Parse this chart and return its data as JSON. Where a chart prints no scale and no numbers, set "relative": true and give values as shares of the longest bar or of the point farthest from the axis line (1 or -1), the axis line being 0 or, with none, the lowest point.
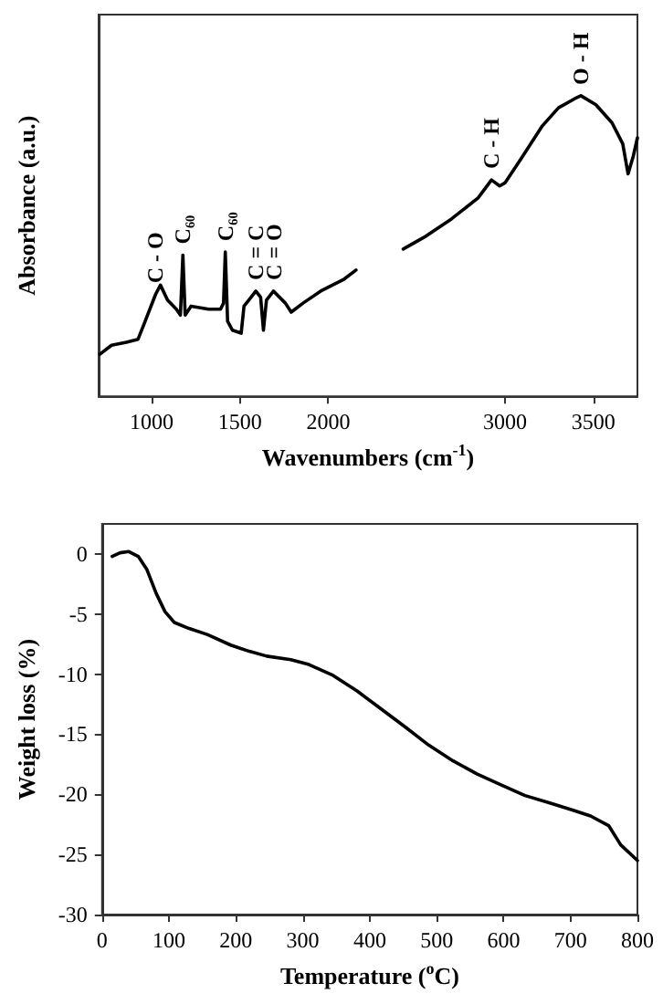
{
  "chart_data": [
    {
      "type": "line",
      "relative": true,
      "xlabel": "Wavenumbers (cm$^{-1}$)",
      "ylabel": "Absorbance (a.u.)",
      "xlim": [
        700,
        3750
      ],
      "xticks": [
        1000,
        1500,
        2000,
        3000,
        3500
      ],
      "tick_labels": "x",
      "grid": false,
      "marker": "none",
      "line_style": "solid",
      "x": [
        707,
        773,
        857,
        923,
        957,
        1023,
        1050,
        1090,
        1140,
        1163,
        1177,
        1190,
        1223,
        1323,
        1390,
        1407,
        1417,
        1430,
        1457,
        1507,
        1523,
        1550,
        1590,
        1617,
        1633,
        1650,
        1690,
        1757,
        1790,
        1857,
        1957,
        2090,
        2157,
        2200,
        2424,
        2545,
        2697,
        2848,
        2924,
        2970,
        3000,
        3091,
        3212,
        3303,
        3394,
        3430,
        3515,
        3606,
        3667,
        3697,
        3727,
        3750
      ],
      "series": [
        {
          "color": "#000000",
          "values": [
            0.14,
            0.17,
            0.18,
            0.19,
            0.24,
            0.34,
            0.37,
            0.32,
            0.29,
            0.27,
            0.47,
            0.27,
            0.3,
            0.29,
            0.29,
            0.31,
            0.48,
            0.25,
            0.22,
            0.21,
            0.3,
            0.32,
            0.35,
            0.33,
            0.22,
            0.32,
            0.35,
            0.31,
            0.28,
            0.31,
            0.35,
            0.39,
            0.42,
            null,
            0.49,
            0.53,
            0.59,
            0.66,
            0.72,
            0.7,
            0.71,
            0.79,
            0.9,
            0.96,
            0.99,
            1,
            0.97,
            0.91,
            0.84,
            0.74,
            0.8,
            0.86
          ]
        }
      ],
      "annotations": [
        {
          "text": "C - O",
          "x": 1023,
          "y": 0.34
        },
        {
          "text": "C₆₀",
          "x": 1177,
          "y": 0.47
        },
        {
          "text": "C₆₀",
          "x": 1417,
          "y": 0.48
        },
        {
          "text": "C = C",
          "x": 1590,
          "y": 0.35
        },
        {
          "text": "C = O",
          "x": 1690,
          "y": 0.35
        },
        {
          "text": "C - H",
          "x": 2924,
          "y": 0.72
        },
        {
          "text": "O - H",
          "x": 3430,
          "y": 1
        }
      ]
    },
    {
      "type": "line",
      "xlabel": "Temperature ($^{o}$C)",
      "ylabel": "Weight loss (%)",
      "xlim": [
        0,
        800
      ],
      "xticks": [
        0,
        100,
        200,
        300,
        400,
        500,
        600,
        700,
        800
      ],
      "ylim": [
        -30,
        2.5
      ],
      "yticks": [
        -30,
        -25,
        -20,
        -15,
        -10,
        -5,
        0
      ],
      "grid": false,
      "marker": "none",
      "line_style": "solid",
      "x": [
        15,
        27,
        40,
        54,
        67,
        81,
        94,
        108,
        130,
        157,
        193,
        220,
        246,
        282,
        309,
        345,
        381,
        417,
        453,
        488,
        524,
        560,
        596,
        632,
        668,
        703,
        730,
        757,
        775,
        800
      ],
      "series": [
        {
          "color": "#000000",
          "values": [
            -0.2,
            0.1,
            0.2,
            -0.2,
            -1.3,
            -3.3,
            -4.8,
            -5.7,
            -6.2,
            -6.7,
            -7.6,
            -8.1,
            -8.5,
            -8.8,
            -9.2,
            -10.1,
            -11.4,
            -12.9,
            -14.4,
            -15.9,
            -17.2,
            -18.3,
            -19.2,
            -20.1,
            -20.7,
            -21.3,
            -21.8,
            -22.6,
            -24.2,
            -25.5
          ]
        }
      ]
    }
  ]
}
